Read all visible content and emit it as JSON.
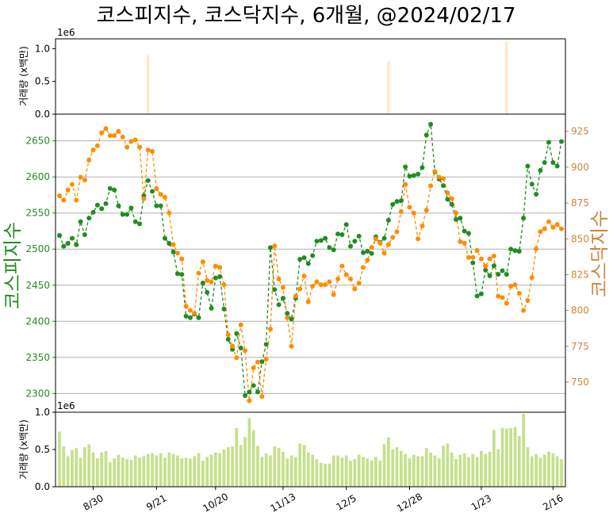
{
  "chart_data": {
    "type": "line",
    "title": "코스피지수, 코스닥지수, 6개월, @2024/02/17",
    "colors": {
      "kospi": "#228b22",
      "kosdaq": "#ff8c00",
      "kosdaq_axis": "#cd853f",
      "volume_top": "#ffe4c4",
      "volume_bottom": "#c5e08c",
      "grid": "#b0b0b0"
    },
    "x_tick_labels": [
      "8/30",
      "9/21",
      "10/20",
      "11/13",
      "12/5",
      "12/28",
      "1/23",
      "2/16"
    ],
    "x_tick_positions": [
      8,
      23,
      37,
      53,
      68,
      83,
      100,
      117
    ],
    "top_panel": {
      "ylabel": "거래량 (x백만)",
      "scale_label": "1e6",
      "yticks": [
        "0.0",
        "0.5",
        "1.0"
      ],
      "ylim": [
        0,
        1.15
      ],
      "bars": [
        {
          "index": 21,
          "value": 0.9
        },
        {
          "index": 78,
          "value": 0.8
        },
        {
          "index": 106,
          "value": 1.12
        }
      ]
    },
    "main_panel": {
      "left_axis": {
        "label": "코스피지수",
        "ticks": [
          2300,
          2350,
          2400,
          2450,
          2500,
          2550,
          2600,
          2650
        ],
        "ylim": [
          2274,
          2687
        ]
      },
      "right_axis": {
        "label": "코스닥지수",
        "ticks": [
          750,
          775,
          800,
          825,
          850,
          875,
          900,
          925
        ],
        "ylim": [
          729,
          937
        ]
      },
      "series": [
        {
          "name": "코스피지수",
          "axis": "left",
          "values": [
            2519,
            2504,
            2508,
            2515,
            2506,
            2538,
            2520,
            2543,
            2551,
            2561,
            2556,
            2563,
            2584,
            2582,
            2560,
            2548,
            2548,
            2557,
            2538,
            2535,
            2574,
            2595,
            2580,
            2560,
            2560,
            2515,
            2508,
            2496,
            2466,
            2465,
            2407,
            2405,
            2410,
            2405,
            2453,
            2440,
            2418,
            2460,
            2462,
            2417,
            2375,
            2361,
            2383,
            2363,
            2297,
            2302,
            2311,
            2302,
            2344,
            2368,
            2502,
            2444,
            2423,
            2432,
            2411,
            2403,
            2432,
            2486,
            2488,
            2480,
            2491,
            2511,
            2512,
            2515,
            2502,
            2499,
            2521,
            2520,
            2534,
            2504,
            2511,
            2518,
            2495,
            2497,
            2494,
            2517,
            2509,
            2515,
            2540,
            2562,
            2566,
            2567,
            2614,
            2601,
            2602,
            2604,
            2613,
            2658,
            2673,
            2607,
            2597,
            2588,
            2569,
            2562,
            2541,
            2543,
            2525,
            2522,
            2481,
            2435,
            2438,
            2471,
            2463,
            2477,
            2465,
            2470,
            2465,
            2500,
            2498,
            2497,
            2543,
            2615,
            2590,
            2576,
            2609,
            2620,
            2648,
            2620,
            2615,
            2649
          ]
        },
        {
          "name": "코스닥지수",
          "axis": "right",
          "values": [
            880,
            877,
            884,
            888,
            877,
            893,
            891,
            905,
            912,
            915,
            924,
            927,
            922,
            922,
            925,
            921,
            914,
            918,
            919,
            914,
            878,
            912,
            911,
            885,
            881,
            879,
            868,
            846,
            840,
            836,
            803,
            800,
            798,
            826,
            834,
            821,
            820,
            831,
            830,
            818,
            783,
            775,
            767,
            790,
            772,
            737,
            760,
            764,
            740,
            766,
            787,
            845,
            822,
            816,
            795,
            775,
            810,
            815,
            824,
            806,
            817,
            820,
            818,
            818,
            820,
            811,
            822,
            831,
            825,
            822,
            815,
            819,
            830,
            835,
            844,
            850,
            847,
            840,
            846,
            851,
            855,
            869,
            888,
            872,
            868,
            850,
            859,
            870,
            887,
            897,
            893,
            892,
            882,
            878,
            868,
            848,
            847,
            837,
            837,
            842,
            836,
            831,
            836,
            838,
            810,
            809,
            805,
            817,
            818,
            812,
            800,
            807,
            823,
            843,
            855,
            857,
            862,
            858,
            860,
            857
          ]
        }
      ]
    },
    "bottom_panel": {
      "ylabel": "거래량 (x백만)",
      "scale_label": "1e6",
      "yticks": [
        "0.0",
        "0.5",
        "1.0"
      ],
      "ylim": [
        0,
        1.0
      ],
      "values": [
        0.74,
        0.54,
        0.41,
        0.49,
        0.52,
        0.39,
        0.53,
        0.57,
        0.46,
        0.38,
        0.46,
        0.48,
        0.33,
        0.38,
        0.43,
        0.39,
        0.37,
        0.36,
        0.42,
        0.39,
        0.41,
        0.44,
        0.45,
        0.42,
        0.45,
        0.39,
        0.46,
        0.44,
        0.42,
        0.38,
        0.39,
        0.38,
        0.41,
        0.45,
        0.35,
        0.4,
        0.43,
        0.46,
        0.45,
        0.5,
        0.53,
        0.54,
        0.79,
        0.56,
        0.67,
        0.92,
        0.76,
        0.55,
        0.4,
        0.45,
        0.42,
        0.54,
        0.52,
        0.47,
        0.38,
        0.42,
        0.4,
        0.58,
        0.56,
        0.46,
        0.43,
        0.37,
        0.32,
        0.31,
        0.31,
        0.42,
        0.42,
        0.39,
        0.42,
        0.35,
        0.37,
        0.43,
        0.4,
        0.38,
        0.35,
        0.4,
        0.35,
        0.57,
        0.66,
        0.5,
        0.53,
        0.48,
        0.44,
        0.38,
        0.43,
        0.41,
        0.41,
        0.52,
        0.46,
        0.42,
        0.38,
        0.55,
        0.58,
        0.46,
        0.37,
        0.43,
        0.45,
        0.4,
        0.44,
        0.4,
        0.48,
        0.44,
        0.47,
        0.76,
        0.5,
        0.79,
        0.78,
        0.79,
        0.8,
        0.68,
        0.98,
        0.53,
        0.41,
        0.44,
        0.39,
        0.43,
        0.47,
        0.45,
        0.41,
        0.37
      ]
    }
  }
}
